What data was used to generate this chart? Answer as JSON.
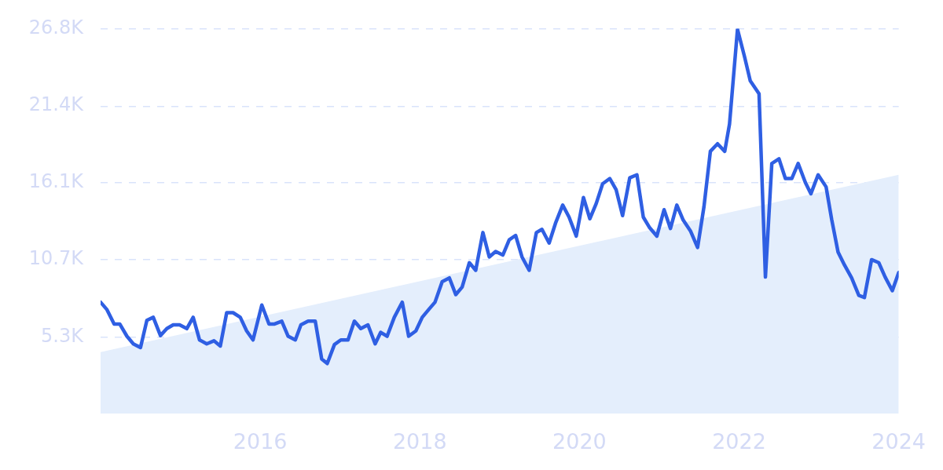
{
  "chart_data": {
    "type": "line",
    "xlim": [
      2014,
      2024
    ],
    "ylim": [
      0,
      26.8
    ],
    "xticks": [
      2016,
      2018,
      2020,
      2022,
      2024
    ],
    "yticks": [
      {
        "value": 5.3,
        "label": "5.3K"
      },
      {
        "value": 10.7,
        "label": "10.7K"
      },
      {
        "value": 16.1,
        "label": "16.1K"
      },
      {
        "value": 21.4,
        "label": "21.4K"
      },
      {
        "value": 26.8,
        "label": "26.8K"
      }
    ],
    "grid": "y",
    "marker": "none",
    "series": [
      {
        "type": "area",
        "color": "#e4eefc",
        "x": [
          2014,
          2024
        ],
        "values": [
          4.27,
          16.62
        ]
      },
      {
        "type": "line",
        "color": "#2f5fe3",
        "x": [
          2014.0,
          2014.08,
          2014.17,
          2014.24,
          2014.33,
          2014.41,
          2014.5,
          2014.58,
          2014.66,
          2014.75,
          2014.83,
          2014.91,
          2014.99,
          2015.08,
          2015.16,
          2015.24,
          2015.33,
          2015.42,
          2015.5,
          2015.58,
          2015.66,
          2015.75,
          2015.83,
          2015.91,
          2016.02,
          2016.11,
          2016.18,
          2016.27,
          2016.35,
          2016.44,
          2016.51,
          2016.6,
          2016.69,
          2016.77,
          2016.84,
          2016.93,
          2017.01,
          2017.1,
          2017.18,
          2017.26,
          2017.35,
          2017.44,
          2017.51,
          2017.59,
          2017.68,
          2017.78,
          2017.86,
          2017.95,
          2018.03,
          2018.11,
          2018.19,
          2018.28,
          2018.37,
          2018.45,
          2018.53,
          2018.62,
          2018.7,
          2018.79,
          2018.87,
          2018.95,
          2019.04,
          2019.12,
          2019.2,
          2019.28,
          2019.37,
          2019.46,
          2019.53,
          2019.62,
          2019.7,
          2019.79,
          2019.87,
          2019.96,
          2020.05,
          2020.13,
          2020.21,
          2020.29,
          2020.38,
          2020.46,
          2020.54,
          2020.63,
          2020.72,
          2020.8,
          2020.88,
          2020.97,
          2021.06,
          2021.14,
          2021.22,
          2021.3,
          2021.39,
          2021.48,
          2021.56,
          2021.64,
          2021.73,
          2021.82,
          2021.88,
          2021.98,
          2022.07,
          2022.14,
          2022.25,
          2022.33,
          2022.41,
          2022.5,
          2022.58,
          2022.66,
          2022.74,
          2022.83,
          2022.9,
          2022.99,
          2023.09,
          2023.16,
          2023.24,
          2023.32,
          2023.41,
          2023.5,
          2023.57,
          2023.66,
          2023.75,
          2023.83,
          2023.92,
          2024.0
        ],
        "values": [
          7.75,
          7.23,
          6.23,
          6.23,
          5.38,
          4.85,
          4.59,
          6.49,
          6.7,
          5.43,
          5.91,
          6.17,
          6.17,
          5.91,
          6.7,
          5.12,
          4.85,
          5.06,
          4.7,
          7.02,
          7.02,
          6.7,
          5.75,
          5.12,
          7.55,
          6.23,
          6.23,
          6.43,
          5.38,
          5.12,
          6.17,
          6.43,
          6.43,
          3.8,
          3.48,
          4.8,
          5.12,
          5.12,
          6.43,
          5.91,
          6.17,
          4.85,
          5.65,
          5.38,
          6.7,
          7.75,
          5.38,
          5.75,
          6.7,
          7.23,
          7.75,
          9.18,
          9.44,
          8.28,
          8.8,
          10.5,
          9.97,
          12.6,
          10.9,
          11.28,
          11.03,
          12.09,
          12.4,
          10.9,
          9.97,
          12.6,
          12.82,
          11.87,
          13.25,
          14.51,
          13.67,
          12.35,
          15.04,
          13.56,
          14.62,
          15.99,
          16.36,
          15.57,
          13.78,
          16.41,
          16.62,
          13.67,
          12.93,
          12.35,
          14.19,
          12.88,
          14.51,
          13.46,
          12.72,
          11.56,
          14.4,
          18.25,
          18.78,
          18.25,
          20.15,
          26.75,
          24.8,
          23.16,
          22.26,
          9.5,
          17.41,
          17.73,
          16.36,
          16.36,
          17.41,
          16.09,
          15.3,
          16.62,
          15.78,
          13.51,
          11.24,
          10.34,
          9.44,
          8.23,
          8.07,
          10.71,
          10.5,
          9.5,
          8.55,
          9.82
        ]
      }
    ]
  }
}
